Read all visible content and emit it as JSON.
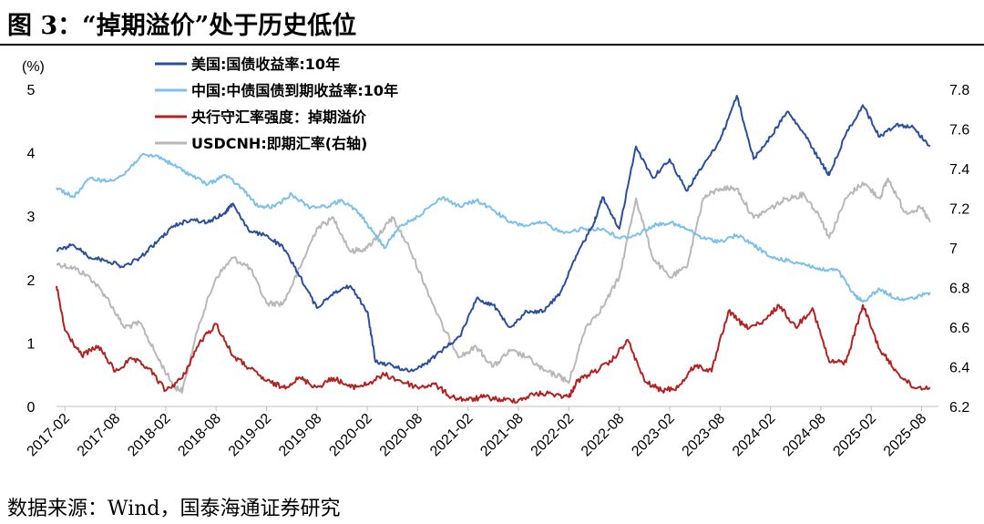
{
  "title": "图 3：“掉期溢价”处于历史低位",
  "source": "数据来源：Wind，国泰海通证券研究",
  "chart_data": {
    "type": "line",
    "left_axis_unit": "(%)",
    "left_ylim": [
      0,
      5
    ],
    "left_ticks": [
      "0",
      "1",
      "2",
      "3",
      "4",
      "5"
    ],
    "right_ylim": [
      6.2,
      7.8
    ],
    "right_ticks": [
      "6.2",
      "6.4",
      "6.6",
      "6.8",
      "7",
      "7.2",
      "7.4",
      "7.6",
      "7.8"
    ],
    "x_ticks": [
      "2017-02",
      "2017-08",
      "2018-02",
      "2018-08",
      "2019-02",
      "2019-08",
      "2020-02",
      "2020-08",
      "2021-02",
      "2021-08",
      "2022-02",
      "2022-08",
      "2023-02",
      "2023-08",
      "2024-02",
      "2024-08",
      "2025-02",
      "2025-08"
    ],
    "x_range": [
      "2017-01",
      "2025-10"
    ],
    "legend_position": "top-left",
    "series": [
      {
        "name": "美国:国债收益率:10年",
        "axis": "left",
        "color": "#2a4f9d",
        "points": [
          [
            "2017-01",
            2.45
          ],
          [
            "2017-03",
            2.55
          ],
          [
            "2017-05",
            2.35
          ],
          [
            "2017-07",
            2.3
          ],
          [
            "2017-09",
            2.2
          ],
          [
            "2017-11",
            2.35
          ],
          [
            "2018-01",
            2.6
          ],
          [
            "2018-03",
            2.85
          ],
          [
            "2018-05",
            2.95
          ],
          [
            "2018-07",
            2.9
          ],
          [
            "2018-09",
            3.05
          ],
          [
            "2018-10",
            3.2
          ],
          [
            "2018-12",
            2.75
          ],
          [
            "2019-02",
            2.7
          ],
          [
            "2019-04",
            2.5
          ],
          [
            "2019-06",
            2.05
          ],
          [
            "2019-08",
            1.55
          ],
          [
            "2019-10",
            1.8
          ],
          [
            "2019-12",
            1.9
          ],
          [
            "2020-02",
            1.5
          ],
          [
            "2020-03",
            0.7
          ],
          [
            "2020-05",
            0.65
          ],
          [
            "2020-07",
            0.55
          ],
          [
            "2020-09",
            0.68
          ],
          [
            "2020-11",
            0.9
          ],
          [
            "2021-01",
            1.1
          ],
          [
            "2021-03",
            1.7
          ],
          [
            "2021-05",
            1.6
          ],
          [
            "2021-07",
            1.25
          ],
          [
            "2021-09",
            1.5
          ],
          [
            "2021-11",
            1.5
          ],
          [
            "2022-01",
            1.8
          ],
          [
            "2022-03",
            2.4
          ],
          [
            "2022-05",
            2.9
          ],
          [
            "2022-06",
            3.3
          ],
          [
            "2022-08",
            2.8
          ],
          [
            "2022-10",
            4.1
          ],
          [
            "2022-12",
            3.6
          ],
          [
            "2023-02",
            3.9
          ],
          [
            "2023-04",
            3.4
          ],
          [
            "2023-06",
            3.8
          ],
          [
            "2023-08",
            4.2
          ],
          [
            "2023-10",
            4.9
          ],
          [
            "2023-12",
            3.9
          ],
          [
            "2024-02",
            4.25
          ],
          [
            "2024-04",
            4.65
          ],
          [
            "2024-06",
            4.3
          ],
          [
            "2024-08",
            3.85
          ],
          [
            "2024-09",
            3.65
          ],
          [
            "2024-11",
            4.3
          ],
          [
            "2025-01",
            4.75
          ],
          [
            "2025-03",
            4.25
          ],
          [
            "2025-05",
            4.45
          ],
          [
            "2025-07",
            4.4
          ],
          [
            "2025-09",
            4.1
          ]
        ]
      },
      {
        "name": "中国:中债国债到期收益率:10年",
        "axis": "left",
        "color": "#7cc1ea",
        "points": [
          [
            "2017-01",
            3.45
          ],
          [
            "2017-03",
            3.3
          ],
          [
            "2017-05",
            3.6
          ],
          [
            "2017-07",
            3.55
          ],
          [
            "2017-09",
            3.65
          ],
          [
            "2017-11",
            3.95
          ],
          [
            "2018-01",
            3.95
          ],
          [
            "2018-03",
            3.8
          ],
          [
            "2018-05",
            3.65
          ],
          [
            "2018-07",
            3.5
          ],
          [
            "2018-09",
            3.65
          ],
          [
            "2018-11",
            3.45
          ],
          [
            "2019-01",
            3.15
          ],
          [
            "2019-03",
            3.15
          ],
          [
            "2019-05",
            3.35
          ],
          [
            "2019-07",
            3.15
          ],
          [
            "2019-09",
            3.15
          ],
          [
            "2019-11",
            3.25
          ],
          [
            "2020-01",
            3.05
          ],
          [
            "2020-03",
            2.7
          ],
          [
            "2020-04",
            2.5
          ],
          [
            "2020-06",
            2.85
          ],
          [
            "2020-08",
            3.0
          ],
          [
            "2020-11",
            3.3
          ],
          [
            "2021-01",
            3.15
          ],
          [
            "2021-03",
            3.25
          ],
          [
            "2021-05",
            3.1
          ],
          [
            "2021-07",
            2.9
          ],
          [
            "2021-09",
            2.85
          ],
          [
            "2021-11",
            2.9
          ],
          [
            "2022-01",
            2.75
          ],
          [
            "2022-04",
            2.8
          ],
          [
            "2022-06",
            2.8
          ],
          [
            "2022-08",
            2.65
          ],
          [
            "2022-10",
            2.7
          ],
          [
            "2022-12",
            2.85
          ],
          [
            "2023-02",
            2.9
          ],
          [
            "2023-04",
            2.8
          ],
          [
            "2023-06",
            2.65
          ],
          [
            "2023-08",
            2.6
          ],
          [
            "2023-10",
            2.7
          ],
          [
            "2023-12",
            2.55
          ],
          [
            "2024-02",
            2.35
          ],
          [
            "2024-04",
            2.3
          ],
          [
            "2024-06",
            2.25
          ],
          [
            "2024-08",
            2.15
          ],
          [
            "2024-10",
            2.15
          ],
          [
            "2024-12",
            1.75
          ],
          [
            "2025-01",
            1.65
          ],
          [
            "2025-03",
            1.85
          ],
          [
            "2025-05",
            1.7
          ],
          [
            "2025-07",
            1.7
          ],
          [
            "2025-09",
            1.8
          ]
        ]
      },
      {
        "name": "央行守汇率强度：掉期溢价",
        "axis": "left",
        "color": "#b22222",
        "points": [
          [
            "2017-01",
            1.9
          ],
          [
            "2017-02",
            1.2
          ],
          [
            "2017-04",
            0.8
          ],
          [
            "2017-06",
            0.95
          ],
          [
            "2017-08",
            0.55
          ],
          [
            "2017-10",
            0.75
          ],
          [
            "2017-12",
            0.6
          ],
          [
            "2018-02",
            0.25
          ],
          [
            "2018-04",
            0.45
          ],
          [
            "2018-06",
            1.0
          ],
          [
            "2018-08",
            1.3
          ],
          [
            "2018-10",
            0.8
          ],
          [
            "2018-12",
            0.6
          ],
          [
            "2019-02",
            0.4
          ],
          [
            "2019-04",
            0.3
          ],
          [
            "2019-06",
            0.45
          ],
          [
            "2019-08",
            0.3
          ],
          [
            "2019-10",
            0.45
          ],
          [
            "2019-12",
            0.3
          ],
          [
            "2020-02",
            0.35
          ],
          [
            "2020-04",
            0.5
          ],
          [
            "2020-06",
            0.4
          ],
          [
            "2020-08",
            0.3
          ],
          [
            "2020-10",
            0.35
          ],
          [
            "2020-12",
            0.15
          ],
          [
            "2021-02",
            0.1
          ],
          [
            "2021-04",
            0.15
          ],
          [
            "2021-06",
            0.1
          ],
          [
            "2021-08",
            0.1
          ],
          [
            "2021-10",
            0.2
          ],
          [
            "2021-12",
            0.2
          ],
          [
            "2022-02",
            0.15
          ],
          [
            "2022-03",
            0.4
          ],
          [
            "2022-05",
            0.55
          ],
          [
            "2022-07",
            0.7
          ],
          [
            "2022-09",
            1.05
          ],
          [
            "2022-11",
            0.4
          ],
          [
            "2023-01",
            0.25
          ],
          [
            "2023-03",
            0.3
          ],
          [
            "2023-05",
            0.65
          ],
          [
            "2023-07",
            0.55
          ],
          [
            "2023-09",
            1.5
          ],
          [
            "2023-11",
            1.25
          ],
          [
            "2024-01",
            1.3
          ],
          [
            "2024-03",
            1.6
          ],
          [
            "2024-05",
            1.25
          ],
          [
            "2024-07",
            1.55
          ],
          [
            "2024-09",
            0.7
          ],
          [
            "2024-11",
            0.7
          ],
          [
            "2025-01",
            1.6
          ],
          [
            "2025-03",
            0.9
          ],
          [
            "2025-05",
            0.55
          ],
          [
            "2025-07",
            0.3
          ],
          [
            "2025-09",
            0.3
          ]
        ]
      },
      {
        "name": "USDCNH:即期汇率(右轴)",
        "axis": "right",
        "color": "#b8b8b8",
        "points": [
          [
            "2017-01",
            6.92
          ],
          [
            "2017-03",
            6.9
          ],
          [
            "2017-05",
            6.85
          ],
          [
            "2017-07",
            6.75
          ],
          [
            "2017-09",
            6.6
          ],
          [
            "2017-11",
            6.62
          ],
          [
            "2018-01",
            6.45
          ],
          [
            "2018-03",
            6.3
          ],
          [
            "2018-04",
            6.28
          ],
          [
            "2018-06",
            6.62
          ],
          [
            "2018-08",
            6.85
          ],
          [
            "2018-10",
            6.95
          ],
          [
            "2018-12",
            6.9
          ],
          [
            "2019-02",
            6.72
          ],
          [
            "2019-04",
            6.72
          ],
          [
            "2019-06",
            6.9
          ],
          [
            "2019-08",
            7.1
          ],
          [
            "2019-10",
            7.15
          ],
          [
            "2019-12",
            6.98
          ],
          [
            "2020-02",
            7.0
          ],
          [
            "2020-04",
            7.1
          ],
          [
            "2020-05",
            7.15
          ],
          [
            "2020-07",
            7.0
          ],
          [
            "2020-09",
            6.8
          ],
          [
            "2020-11",
            6.6
          ],
          [
            "2021-01",
            6.45
          ],
          [
            "2021-03",
            6.5
          ],
          [
            "2021-05",
            6.4
          ],
          [
            "2021-07",
            6.48
          ],
          [
            "2021-09",
            6.45
          ],
          [
            "2021-11",
            6.38
          ],
          [
            "2022-01",
            6.35
          ],
          [
            "2022-02",
            6.32
          ],
          [
            "2022-04",
            6.6
          ],
          [
            "2022-06",
            6.7
          ],
          [
            "2022-08",
            6.85
          ],
          [
            "2022-10",
            7.25
          ],
          [
            "2022-12",
            6.95
          ],
          [
            "2023-02",
            6.85
          ],
          [
            "2023-04",
            6.9
          ],
          [
            "2023-06",
            7.25
          ],
          [
            "2023-08",
            7.3
          ],
          [
            "2023-10",
            7.3
          ],
          [
            "2023-12",
            7.15
          ],
          [
            "2024-02",
            7.2
          ],
          [
            "2024-04",
            7.25
          ],
          [
            "2024-06",
            7.27
          ],
          [
            "2024-08",
            7.15
          ],
          [
            "2024-09",
            7.05
          ],
          [
            "2024-11",
            7.25
          ],
          [
            "2025-01",
            7.33
          ],
          [
            "2025-03",
            7.25
          ],
          [
            "2025-04",
            7.35
          ],
          [
            "2025-06",
            7.18
          ],
          [
            "2025-08",
            7.2
          ],
          [
            "2025-09",
            7.13
          ]
        ]
      }
    ]
  }
}
